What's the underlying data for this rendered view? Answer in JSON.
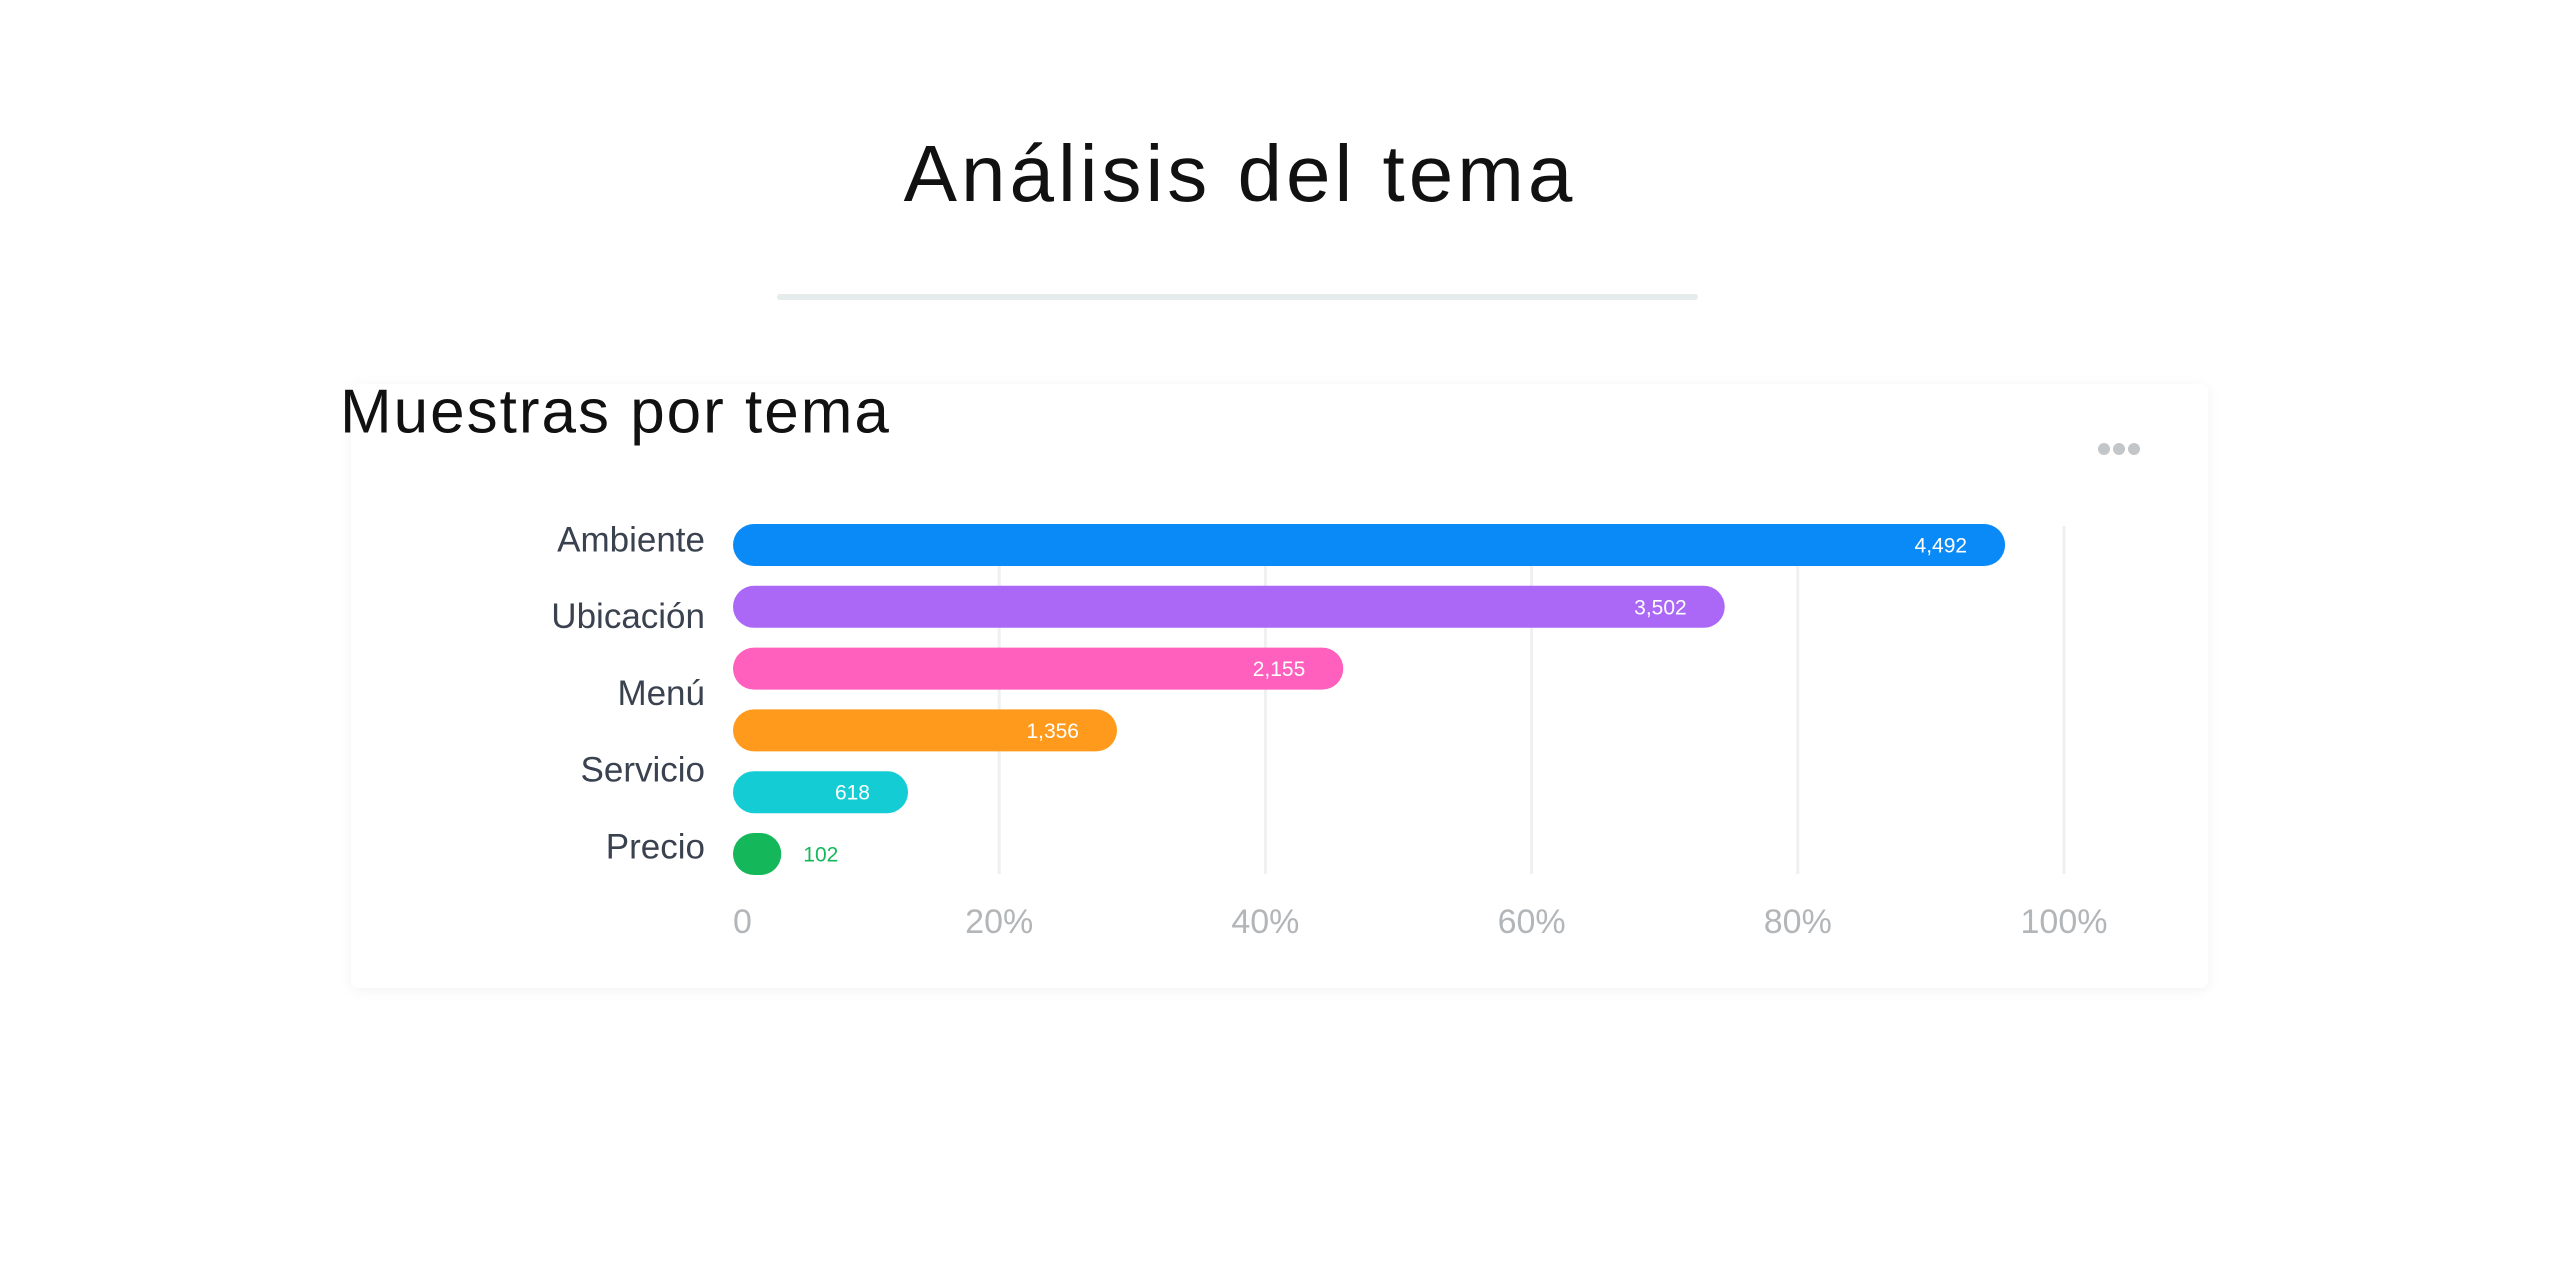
{
  "page_title": "Análisis del tema",
  "chart_data": {
    "type": "bar",
    "orientation": "horizontal",
    "title": "Muestras por tema",
    "categories": [
      "Ambiente",
      "Ubicación",
      "Menú",
      null,
      "Servicio",
      "Precio"
    ],
    "values": [
      4492,
      3502,
      2155,
      1356,
      618,
      102
    ],
    "value_labels": [
      "4,492",
      "3,502",
      "2,155",
      "1,356",
      "618",
      "102"
    ],
    "colors": [
      "#0a8af7",
      "#ab68f7",
      "#ff5fbd",
      "#ff9a1c",
      "#14cdd4",
      "#14b85a"
    ],
    "xlim": [
      0,
      4700
    ],
    "xticks": [
      0,
      {
        "value": 940,
        "label": "20%"
      },
      {
        "value": 1880,
        "label": "40%"
      },
      {
        "value": 2820,
        "label": "60%"
      },
      {
        "value": 3760,
        "label": "80%"
      },
      {
        "value": 4700,
        "label": "100%"
      }
    ],
    "grid": true
  }
}
